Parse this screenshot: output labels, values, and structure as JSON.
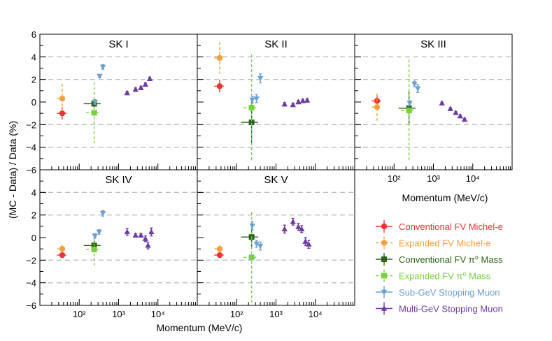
{
  "chart_data": {
    "type": "scatter",
    "ylabel": "(MC - Data) / Data (%)",
    "xlabel": "Momentum (MeV/c)",
    "x_scale": "log",
    "xlim": [
      10,
      100000
    ],
    "ylim": [
      -6,
      6
    ],
    "y_ticks": [
      "6",
      "4",
      "2",
      "0",
      "−2",
      "−4",
      "−6"
    ],
    "x_ticks": [
      "10²",
      "10³",
      "10⁴"
    ],
    "dashed_gridlines_y": [
      -4,
      -2,
      2,
      4
    ],
    "series": [
      {
        "name": "Conventional FV Michel-e",
        "color": "#f03232",
        "marker": "circle",
        "line": "solid"
      },
      {
        "name": "Expanded FV Michel-e",
        "color": "#f5a03c",
        "marker": "circle",
        "line": "dashed"
      },
      {
        "name": "Conventional FV π⁰ Mass",
        "color": "#2d6414",
        "marker": "square",
        "line": "solid"
      },
      {
        "name": "Expanded FV π⁰ Mass",
        "color": "#78d23c",
        "marker": "square",
        "line": "dashed"
      },
      {
        "name": "Sub-GeV Stopping Muon",
        "color": "#6ea0d2",
        "marker": "triangle-down",
        "line": "solid"
      },
      {
        "name": "Multi-GeV Stopping Muon",
        "color": "#6e3ca0",
        "marker": "triangle-up",
        "line": "solid"
      }
    ],
    "panels": [
      {
        "title": "SK I",
        "points": [
          {
            "s": 0,
            "x": 37,
            "y": -1.0,
            "ylo": 0.55,
            "yhi": 0.55,
            "xlo": 10,
            "xhi": 10
          },
          {
            "s": 1,
            "x": 37,
            "y": 0.3,
            "ylo": 1.3,
            "yhi": 1.3,
            "xlo": 10,
            "xhi": 10
          },
          {
            "s": 2,
            "x": 240,
            "y": -0.15,
            "ylo": 0.45,
            "yhi": 0.45,
            "xlo": 110,
            "xhi": 110
          },
          {
            "s": 3,
            "x": 240,
            "y": -0.95,
            "ylo": 2.7,
            "yhi": 2.7,
            "xlo": 90,
            "xhi": 90
          },
          {
            "s": 4,
            "x": 250,
            "y": 0.0,
            "ylo": 0.2,
            "yhi": 0.2
          },
          {
            "s": 4,
            "x": 330,
            "y": 2.3,
            "ylo": 0.15,
            "yhi": 0.15
          },
          {
            "s": 4,
            "x": 400,
            "y": 3.1,
            "ylo": 0.2,
            "yhi": 0.2
          },
          {
            "s": 5,
            "x": 1650,
            "y": 0.8,
            "ylo": 0.15,
            "yhi": 0.15
          },
          {
            "s": 5,
            "x": 2700,
            "y": 1.1,
            "ylo": 0.15,
            "yhi": 0.15
          },
          {
            "s": 5,
            "x": 3700,
            "y": 1.25,
            "ylo": 0.15,
            "yhi": 0.15
          },
          {
            "s": 5,
            "x": 4800,
            "y": 1.55,
            "ylo": 0.15,
            "yhi": 0.15
          },
          {
            "s": 5,
            "x": 6200,
            "y": 2.05,
            "ylo": 0.15,
            "yhi": 0.15
          }
        ]
      },
      {
        "title": "SK II",
        "points": [
          {
            "s": 0,
            "x": 37,
            "y": 1.4,
            "ylo": 0.55,
            "yhi": 0.55,
            "xlo": 10,
            "xhi": 10
          },
          {
            "s": 1,
            "x": 37,
            "y": 3.9,
            "ylo": 1.4,
            "yhi": 1.4,
            "xlo": 10,
            "xhi": 10
          },
          {
            "s": 2,
            "x": 240,
            "y": -1.8,
            "ylo": 1.85,
            "yhi": 1.85,
            "xlo": 110,
            "xhi": 110
          },
          {
            "s": 3,
            "x": 240,
            "y": -0.5,
            "ylo": 4.7,
            "yhi": 4.7,
            "xlo": 90,
            "xhi": 90
          },
          {
            "s": 4,
            "x": 250,
            "y": 0.2,
            "ylo": 0.3,
            "yhi": 0.3
          },
          {
            "s": 4,
            "x": 320,
            "y": 0.3,
            "ylo": 0.35,
            "yhi": 0.35
          },
          {
            "s": 4,
            "x": 400,
            "y": 2.1,
            "ylo": 0.4,
            "yhi": 0.4
          },
          {
            "s": 5,
            "x": 1650,
            "y": -0.2,
            "ylo": 0.15,
            "yhi": 0.15
          },
          {
            "s": 5,
            "x": 2700,
            "y": -0.25,
            "ylo": 0.15,
            "yhi": 0.15
          },
          {
            "s": 5,
            "x": 3700,
            "y": 0.0,
            "ylo": 0.15,
            "yhi": 0.15
          },
          {
            "s": 5,
            "x": 4800,
            "y": 0.1,
            "ylo": 0.15,
            "yhi": 0.15
          },
          {
            "s": 5,
            "x": 6200,
            "y": 0.15,
            "ylo": 0.15,
            "yhi": 0.15
          }
        ]
      },
      {
        "title": "SK III",
        "points": [
          {
            "s": 0,
            "x": 37,
            "y": 0.1,
            "ylo": 0.55,
            "yhi": 0.55,
            "xlo": 10,
            "xhi": 10
          },
          {
            "s": 1,
            "x": 37,
            "y": -0.45,
            "ylo": 1.2,
            "yhi": 1.2,
            "xlo": 10,
            "xhi": 10
          },
          {
            "s": 2,
            "x": 240,
            "y": -0.55,
            "ylo": 1.45,
            "yhi": 1.45,
            "xlo": 110,
            "xhi": 110
          },
          {
            "s": 3,
            "x": 240,
            "y": -0.75,
            "ylo": 4.5,
            "yhi": 4.5,
            "xlo": 90,
            "xhi": 90
          },
          {
            "s": 4,
            "x": 250,
            "y": -0.1,
            "ylo": 0.2,
            "yhi": 0.2
          },
          {
            "s": 4,
            "x": 330,
            "y": 1.6,
            "ylo": 0.25,
            "yhi": 0.25
          },
          {
            "s": 4,
            "x": 400,
            "y": 1.2,
            "ylo": 0.35,
            "yhi": 0.35
          },
          {
            "s": 5,
            "x": 1650,
            "y": -0.1,
            "ylo": 0.1,
            "yhi": 0.1
          },
          {
            "s": 5,
            "x": 2700,
            "y": -0.6,
            "ylo": 0.1,
            "yhi": 0.1
          },
          {
            "s": 5,
            "x": 3700,
            "y": -0.95,
            "ylo": 0.1,
            "yhi": 0.1
          },
          {
            "s": 5,
            "x": 4800,
            "y": -1.25,
            "ylo": 0.1,
            "yhi": 0.1
          },
          {
            "s": 5,
            "x": 6200,
            "y": -1.55,
            "ylo": 0.1,
            "yhi": 0.1
          }
        ]
      },
      {
        "title": "SK IV",
        "points": [
          {
            "s": 0,
            "x": 37,
            "y": -1.55,
            "ylo": 0.2,
            "yhi": 0.2,
            "xlo": 10,
            "xhi": 10
          },
          {
            "s": 1,
            "x": 37,
            "y": -1.0,
            "ylo": 0.35,
            "yhi": 0.35,
            "xlo": 10,
            "xhi": 10
          },
          {
            "s": 2,
            "x": 240,
            "y": -0.7,
            "ylo": 0.4,
            "yhi": 0.4,
            "xlo": 110,
            "xhi": 110
          },
          {
            "s": 3,
            "x": 240,
            "y": -1.05,
            "ylo": 1.4,
            "yhi": 1.4,
            "xlo": 90,
            "xhi": 90
          },
          {
            "s": 4,
            "x": 250,
            "y": 0.15,
            "ylo": 0.2,
            "yhi": 0.2
          },
          {
            "s": 4,
            "x": 320,
            "y": 0.5,
            "ylo": 0.2,
            "yhi": 0.2
          },
          {
            "s": 4,
            "x": 400,
            "y": 2.15,
            "ylo": 0.25,
            "yhi": 0.25
          },
          {
            "s": 5,
            "x": 1650,
            "y": 0.5,
            "ylo": 0.3,
            "yhi": 0.3
          },
          {
            "s": 5,
            "x": 2700,
            "y": 0.2,
            "ylo": 0.15,
            "yhi": 0.15
          },
          {
            "s": 5,
            "x": 3700,
            "y": 0.2,
            "ylo": 0.15,
            "yhi": 0.15
          },
          {
            "s": 5,
            "x": 4800,
            "y": -0.1,
            "ylo": 0.25,
            "yhi": 0.25
          },
          {
            "s": 5,
            "x": 5600,
            "y": -0.7,
            "ylo": 0.3,
            "yhi": 0.3
          },
          {
            "s": 5,
            "x": 6800,
            "y": 0.5,
            "ylo": 0.35,
            "yhi": 0.35
          }
        ]
      },
      {
        "title": "SK V",
        "points": [
          {
            "s": 0,
            "x": 37,
            "y": -1.55,
            "ylo": 0.2,
            "yhi": 0.2,
            "xlo": 10,
            "xhi": 10
          },
          {
            "s": 1,
            "x": 37,
            "y": -1.0,
            "ylo": 0.35,
            "yhi": 0.35,
            "xlo": 10,
            "xhi": 10
          },
          {
            "s": 2,
            "x": 240,
            "y": 0.05,
            "ylo": 1.0,
            "yhi": 1.0,
            "xlo": 110,
            "xhi": 110
          },
          {
            "s": 3,
            "x": 240,
            "y": -1.75,
            "ylo": 4.0,
            "yhi": 4.0,
            "xlo": 90,
            "xhi": 90
          },
          {
            "s": 4,
            "x": 250,
            "y": 1.05,
            "ylo": 0.35,
            "yhi": 0.35
          },
          {
            "s": 4,
            "x": 320,
            "y": -0.55,
            "ylo": 0.3,
            "yhi": 0.3
          },
          {
            "s": 4,
            "x": 400,
            "y": -0.75,
            "ylo": 0.35,
            "yhi": 0.35
          },
          {
            "s": 5,
            "x": 1650,
            "y": 0.75,
            "ylo": 0.35,
            "yhi": 0.35
          },
          {
            "s": 5,
            "x": 2700,
            "y": 1.4,
            "ylo": 0.3,
            "yhi": 0.3
          },
          {
            "s": 5,
            "x": 3700,
            "y": 0.95,
            "ylo": 0.3,
            "yhi": 0.3
          },
          {
            "s": 5,
            "x": 4500,
            "y": 0.75,
            "ylo": 0.3,
            "yhi": 0.3
          },
          {
            "s": 5,
            "x": 5600,
            "y": -0.35,
            "ylo": 0.35,
            "yhi": 0.35
          },
          {
            "s": 5,
            "x": 6800,
            "y": -0.6,
            "ylo": 0.35,
            "yhi": 0.35
          }
        ]
      }
    ]
  }
}
